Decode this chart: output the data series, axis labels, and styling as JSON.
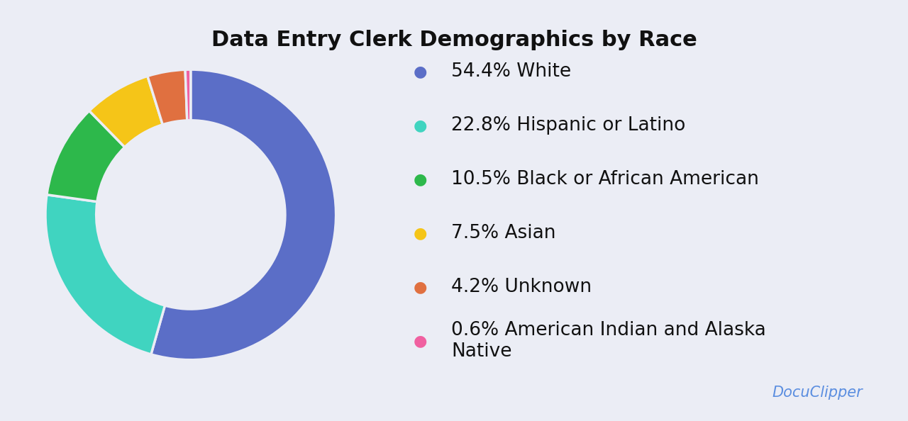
{
  "title": "Data Entry Clerk Demographics by Race",
  "slices": [
    54.4,
    22.8,
    10.5,
    7.5,
    4.2,
    0.6
  ],
  "labels": [
    "54.4% White",
    "22.8% Hispanic or Latino",
    "10.5% Black or African American",
    "7.5% Asian",
    "4.2% Unknown",
    "0.6% American Indian and Alaska\nNative"
  ],
  "colors": [
    "#5B6EC7",
    "#40D4C0",
    "#2DB84B",
    "#F5C518",
    "#E07040",
    "#F060A0"
  ],
  "background_color": "#EBEdf5",
  "title_fontsize": 22,
  "legend_fontsize": 19,
  "watermark": "DocuClipper",
  "watermark_color": "#5B8EE0",
  "startangle": 90
}
